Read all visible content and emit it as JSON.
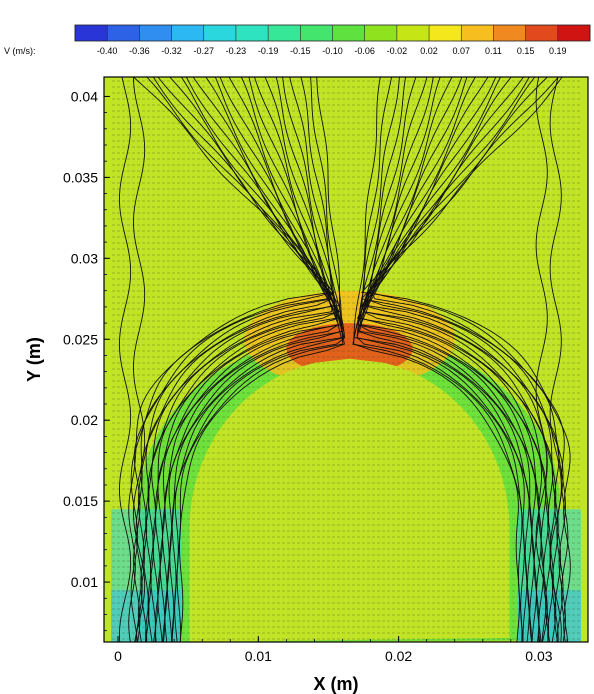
{
  "chart_data": {
    "type": "contour",
    "variable_label": "V (m/s):",
    "xlabel": "X (m)",
    "ylabel": "Y (m)",
    "xlim": [
      -0.001,
      0.0335
    ],
    "ylim": [
      0.0063,
      0.0412
    ],
    "x_ticks": [
      0,
      0.01,
      0.02,
      0.03
    ],
    "x_tick_labels": [
      "0",
      "0.01",
      "0.02",
      "0.03"
    ],
    "y_ticks": [
      0.01,
      0.015,
      0.02,
      0.025,
      0.03,
      0.035,
      0.04
    ],
    "y_tick_labels": [
      "0.01",
      "0.015",
      "0.02",
      "0.025",
      "0.03",
      "0.035",
      "0.04"
    ],
    "colorbar": {
      "levels": [
        -0.4,
        -0.36,
        -0.32,
        -0.27,
        -0.23,
        -0.19,
        -0.15,
        -0.1,
        -0.06,
        -0.02,
        0.02,
        0.07,
        0.11,
        0.15,
        0.19
      ],
      "level_labels": [
        "-0.40",
        "-0.36",
        "-0.32",
        "-0.27",
        "-0.23",
        "-0.19",
        "-0.15",
        "-0.10",
        "-0.06",
        "-0.02",
        "0.02",
        "0.07",
        "0.11",
        "0.15",
        "0.19"
      ],
      "colors": [
        "#2a35d8",
        "#2e62e6",
        "#2f8ef0",
        "#2cb8f2",
        "#2ad7df",
        "#2ee3c0",
        "#37e798",
        "#43e56c",
        "#5fe13f",
        "#8fe21e",
        "#c5e515",
        "#f4e71c",
        "#f6bf1f",
        "#f08a20",
        "#e2491c",
        "#cf1412"
      ]
    },
    "background_color": "#c2e426",
    "streamlines": "on",
    "velocity_vectors": "on"
  }
}
